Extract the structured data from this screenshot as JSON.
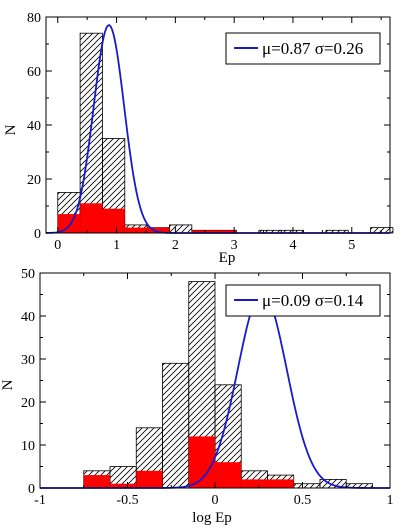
{
  "colors": {
    "hatch": "#000000",
    "highlight": "#ff0000",
    "fit": "#1a1acc",
    "frame": "#000000"
  },
  "chart_data": [
    {
      "type": "bar",
      "xlabel": "Ep",
      "ylabel": "N",
      "xlim": [
        -0.2,
        5.65
      ],
      "ylim": [
        0,
        80
      ],
      "xticks": [
        0,
        1,
        2,
        3,
        4,
        5
      ],
      "yticks": [
        0,
        20,
        40,
        60,
        80
      ],
      "bin_edges": [
        0,
        0.38,
        0.76,
        1.14,
        1.52,
        1.9,
        2.28,
        2.66,
        3.04,
        3.42,
        3.8,
        4.18,
        4.56,
        4.94,
        5.32,
        5.7
      ],
      "total_counts": [
        15,
        74,
        35,
        3,
        2,
        3,
        1,
        1,
        0,
        1,
        1,
        0,
        1,
        0,
        2
      ],
      "highlight_counts": [
        7,
        11,
        9,
        2,
        2,
        0,
        1,
        1,
        0,
        0,
        0,
        0,
        0,
        0,
        0
      ],
      "fit": {
        "type": "gaussian",
        "mu": 0.87,
        "sigma": 0.26,
        "peak": 77
      },
      "legend": {
        "label": "μ=0.87 σ=0.26",
        "position": "top-right"
      }
    },
    {
      "type": "bar",
      "xlabel": "log Ep",
      "ylabel": "N",
      "xlim": [
        -1,
        1
      ],
      "ylim": [
        0,
        50
      ],
      "xticks": [
        -1,
        -0.5,
        0,
        0.5,
        1
      ],
      "yticks": [
        0,
        10,
        20,
        30,
        40,
        50
      ],
      "bin_edges": [
        -0.75,
        -0.6,
        -0.45,
        -0.3,
        -0.15,
        0,
        0.15,
        0.3,
        0.45,
        0.6,
        0.75,
        0.9
      ],
      "total_counts": [
        4,
        5,
        14,
        29,
        48,
        24,
        4,
        3,
        1,
        2,
        1
      ],
      "highlight_counts": [
        3,
        1,
        4,
        0,
        12,
        6,
        2,
        2,
        0,
        0,
        0
      ],
      "fit": {
        "type": "gaussian",
        "mu": 0.09,
        "sigma": 0.14,
        "peak": 45.5,
        "x_offset": 0.18
      },
      "legend": {
        "label": "μ=0.09 σ=0.14",
        "position": "top-right"
      }
    }
  ]
}
